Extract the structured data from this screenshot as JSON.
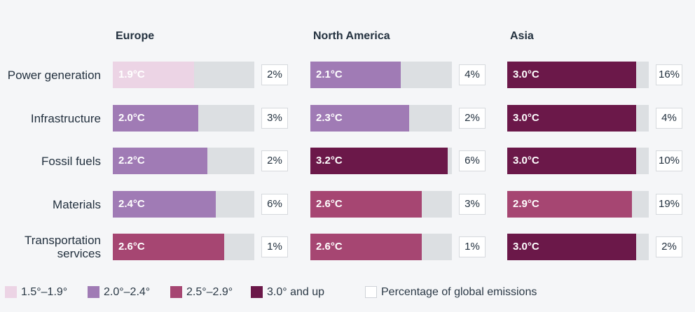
{
  "chart_data": {
    "type": "bar",
    "regions": [
      "Europe",
      "North America",
      "Asia"
    ],
    "categories": [
      "Power generation",
      "Infrastructure",
      "Fossil fuels",
      "Materials",
      "Transportation services"
    ],
    "category_lines": [
      [
        "Power generation"
      ],
      [
        "Infrastructure"
      ],
      [
        "Fossil fuels"
      ],
      [
        "Materials"
      ],
      [
        "Transportation",
        "services"
      ]
    ],
    "temperature_values": [
      [
        1.9,
        2.0,
        2.2,
        2.4,
        2.6
      ],
      [
        2.1,
        2.3,
        3.2,
        2.6,
        2.6
      ],
      [
        3.0,
        3.0,
        3.0,
        2.9,
        3.0
      ]
    ],
    "value_labels": [
      [
        "1.9°C",
        "2.0°C",
        "2.2°C",
        "2.4°C",
        "2.6°C"
      ],
      [
        "2.1°C",
        "2.3°C",
        "3.2°C",
        "2.6°C",
        "2.6°C"
      ],
      [
        "3.0°C",
        "3.0°C",
        "3.0°C",
        "2.9°C",
        "3.0°C"
      ]
    ],
    "emissions_share": [
      [
        "2%",
        "3%",
        "2%",
        "6%",
        "1%"
      ],
      [
        "4%",
        "2%",
        "6%",
        "3%",
        "1%"
      ],
      [
        "16%",
        "4%",
        "10%",
        "19%",
        "2%"
      ]
    ],
    "scale_max": 3.3,
    "legend": [
      {
        "label": "1.5°–1.9°",
        "color": "#ecd4e5"
      },
      {
        "label": "2.0°–2.4°",
        "color": "#a07bb5"
      },
      {
        "label": "2.5°–2.9°",
        "color": "#a64672"
      },
      {
        "label": "3.0° and up",
        "color": "#6b1849"
      },
      {
        "label": "Percentage of global emissions",
        "color": "#ffffff"
      }
    ],
    "colors": {
      "1.5-1.9": "#ecd4e5",
      "2.0-2.4": "#a07bb5",
      "2.5-2.9": "#a64672",
      "3.0+": "#6b1849",
      "track": "#dcdfe2"
    }
  }
}
